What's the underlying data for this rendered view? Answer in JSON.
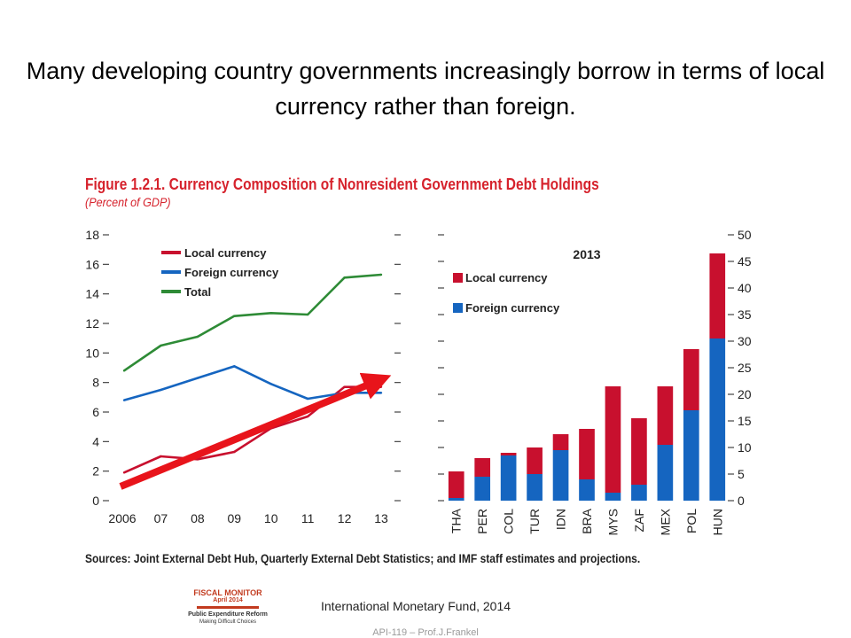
{
  "slide": {
    "title": "Many developing country governments increasingly borrow in terms of local currency rather than foreign."
  },
  "figure": {
    "title": "Figure 1.2.1. Currency Composition of Nonresident Government Debt Holdings",
    "subtitle": "(Percent of GDP)",
    "sources": "Sources: Joint External Debt Hub, Quarterly External Debt Statistics; and IMF staff estimates and projections."
  },
  "cover": {
    "title": "FISCAL MONITOR",
    "date": "April 2014",
    "report": "Public Expenditure Reform",
    "subtitle": "Making Difficult Choices"
  },
  "credit": "International Monetary Fund, 2014",
  "footer": "API-119 – Prof.J.Frankel",
  "colors": {
    "local": "#c8102e",
    "foreign": "#1565c0",
    "total": "#2e8b36",
    "title_red": "#d6222c",
    "arrow": "#e8141b"
  },
  "chart_data": [
    {
      "type": "line",
      "title": "",
      "x": [
        "2006",
        "07",
        "08",
        "09",
        "10",
        "11",
        "12",
        "13"
      ],
      "ylim": [
        0,
        18
      ],
      "yticks": [
        0,
        2,
        4,
        6,
        8,
        10,
        12,
        14,
        16,
        18
      ],
      "legend": "top-left",
      "series": [
        {
          "name": "Local currency",
          "values": [
            1.9,
            3.0,
            2.8,
            3.3,
            4.9,
            5.7,
            7.7,
            7.7
          ]
        },
        {
          "name": "Foreign currency",
          "values": [
            6.8,
            7.5,
            8.3,
            9.1,
            7.9,
            6.9,
            7.3,
            7.3
          ]
        },
        {
          "name": "Total",
          "values": [
            8.8,
            10.5,
            11.1,
            12.5,
            12.7,
            12.6,
            15.1,
            15.3
          ]
        }
      ],
      "annotation": "red arrow rising from 2006 to 2013"
    },
    {
      "type": "bar",
      "stacked": true,
      "title": "2013",
      "categories": [
        "THA",
        "PER",
        "COL",
        "TUR",
        "IDN",
        "BRA",
        "MYS",
        "ZAF",
        "MEX",
        "POL",
        "HUN"
      ],
      "ylim": [
        0,
        50
      ],
      "yticks": [
        0,
        5,
        10,
        15,
        20,
        25,
        30,
        35,
        40,
        45,
        50
      ],
      "legend": "top-left",
      "series": [
        {
          "name": "Local currency",
          "values": [
            5.0,
            3.5,
            0.5,
            5.0,
            3.0,
            9.5,
            20.0,
            12.5,
            11.0,
            11.5,
            16.0
          ]
        },
        {
          "name": "Foreign currency",
          "values": [
            0.5,
            4.5,
            8.5,
            5.0,
            9.5,
            4.0,
            1.5,
            3.0,
            10.5,
            17.0,
            30.5
          ]
        }
      ]
    }
  ]
}
